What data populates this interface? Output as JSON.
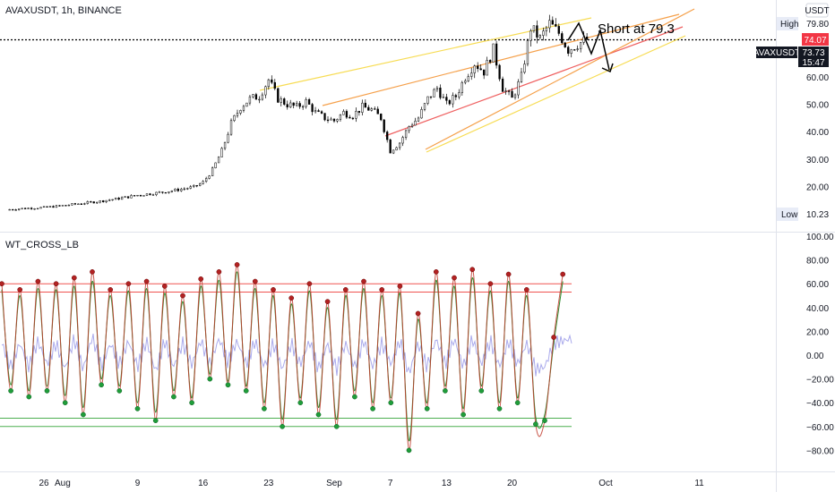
{
  "header": {
    "symbol_line": "AVAXUSDT, 1h, BINANCE"
  },
  "price_axis": {
    "currency": "USDT",
    "ticks": [
      "60.00",
      "50.00",
      "40.00",
      "30.00",
      "20.00"
    ],
    "tick_values": [
      60,
      50,
      40,
      30,
      20
    ],
    "high_label": "High",
    "high_value": "79.80",
    "low_label": "Low",
    "low_value": "10.23",
    "red_badge": "74.07",
    "ticker_name": "AVAXUSDT",
    "ticker_price": "73.73",
    "ticker_countdown": "15:47"
  },
  "indicator": {
    "name": "WT_CROSS_LB",
    "ticks": [
      "100.00",
      "80.00",
      "60.00",
      "40.00",
      "20.00",
      "0.00",
      "−20.00",
      "−40.00",
      "−60.00",
      "−80.00"
    ],
    "tick_values": [
      100,
      80,
      60,
      40,
      20,
      0,
      -20,
      -40,
      -60,
      -80
    ],
    "overbought_levels": [
      60,
      53
    ],
    "oversold_levels": [
      -53,
      -60
    ]
  },
  "annotation": {
    "text": "Short at 79.3"
  },
  "time_axis": {
    "labels": [
      "26",
      "Aug",
      "9",
      "16",
      "23",
      "Sep",
      "7",
      "13",
      "20",
      "Oct",
      "11"
    ],
    "positions": [
      -2,
      0,
      8,
      15,
      22,
      29,
      35,
      41,
      48,
      58,
      68
    ]
  },
  "colors": {
    "wt1": "#c0392b",
    "wt2": "#2e8b2e",
    "hist": "#8f8fe6",
    "red_line": "#ef5350",
    "green_line": "#26a69a",
    "fib_yellow": "#f7dc54",
    "fib_orange": "#f5a04a",
    "fib_red": "#ef6060",
    "badge_red": "#f23645",
    "badge_dark": "#131722"
  },
  "chart_data": [
    {
      "type": "candlestick",
      "title": "AVAXUSDT, 1h, BINANCE",
      "x_unit": "days from Aug 1",
      "ylim": [
        5,
        86
      ],
      "xlim": [
        -6.5,
        76
      ],
      "x": [
        -6,
        -4,
        -2,
        0,
        2,
        4,
        6,
        8,
        10,
        12,
        14,
        15,
        16,
        17,
        18,
        19,
        20,
        21,
        22,
        23,
        24,
        25,
        26,
        27,
        28,
        29,
        30,
        31,
        32,
        33,
        34,
        35,
        36,
        37,
        38,
        39,
        40,
        41,
        42,
        43,
        44,
        45,
        46,
        47,
        48,
        49,
        50,
        51,
        52,
        53,
        54,
        55,
        56
      ],
      "close": [
        11.5,
        12,
        12.3,
        13,
        13.8,
        14.6,
        15.6,
        16.8,
        17.6,
        18.6,
        19.8,
        21.5,
        26,
        33,
        43,
        49,
        52,
        53,
        59,
        52,
        50,
        49,
        51,
        47,
        45,
        44,
        47,
        46,
        49,
        48,
        45,
        33,
        36,
        42,
        45,
        52,
        56,
        50,
        53,
        60,
        65,
        62,
        70,
        56,
        52,
        60,
        78,
        74,
        79.5,
        76,
        70,
        72,
        73.7
      ],
      "high_value": 79.8,
      "low_value": 10.23,
      "last_price": 73.73
    },
    {
      "type": "line",
      "title": "WT_CROSS_LB",
      "ylim": [
        -88,
        100
      ],
      "x": [
        -6.5,
        -5.5,
        -4.5,
        -3.5,
        -2.5,
        -1.5,
        -0.5,
        0.5,
        1.5,
        2.5,
        3.5,
        4.5,
        5.5,
        6.5,
        7.5,
        8.5,
        9.5,
        10.5,
        11.5,
        12.5,
        13.5,
        14.5,
        15.5,
        16.5,
        17.5,
        18.5,
        19.5,
        20.5,
        21.5,
        22.5,
        23.5,
        24.5,
        25.5,
        26.5,
        27.5,
        28.5,
        29.5,
        30.5,
        31.5,
        32.5,
        33.5,
        34.5,
        35.5,
        36.5,
        37.5,
        38.5,
        39.5,
        40.5,
        41.5,
        42.5,
        43.5,
        44.5,
        45.5,
        46.5,
        47.5,
        48.5,
        49.5,
        50.5,
        51.5,
        52.5,
        53.5,
        54.5,
        55.5
      ],
      "series": [
        {
          "values": [
            60,
            -30,
            55,
            -35,
            62,
            -30,
            60,
            -40,
            65,
            -50,
            70,
            -25,
            55,
            -30,
            60,
            -45,
            62,
            -55,
            58,
            -35,
            50,
            -40,
            64,
            -20,
            70,
            -25,
            76,
            -30,
            62,
            -45,
            55,
            -60,
            48,
            -40,
            60,
            -50,
            45,
            -60,
            55,
            -35,
            62,
            -45,
            55,
            -40,
            58,
            -80,
            35,
            -45,
            70,
            -30,
            65,
            -50,
            72,
            -30,
            60,
            -45,
            68,
            -40,
            55,
            -58,
            -55,
            15,
            68
          ]
        },
        {
          "values": [
            55,
            -25,
            50,
            -30,
            56,
            -26,
            55,
            -34,
            58,
            -44,
            62,
            -20,
            50,
            -26,
            54,
            -40,
            56,
            -48,
            52,
            -30,
            45,
            -36,
            58,
            -16,
            63,
            -22,
            70,
            -26,
            56,
            -40,
            50,
            -54,
            43,
            -36,
            54,
            -44,
            40,
            -54,
            50,
            -30,
            56,
            -40,
            50,
            -36,
            52,
            -72,
            30,
            -40,
            63,
            -26,
            58,
            -45,
            65,
            -26,
            54,
            -40,
            62,
            -36,
            50,
            -52,
            -50,
            10,
            62
          ]
        }
      ],
      "levels": [
        60,
        53,
        -53,
        -60
      ]
    }
  ]
}
